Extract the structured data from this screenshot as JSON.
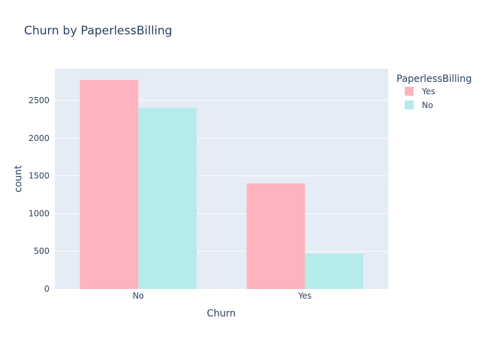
{
  "chart_data": {
    "type": "bar",
    "title": "Churn by PaperlessBilling",
    "xlabel": "Churn",
    "ylabel": "count",
    "categories": [
      "No",
      "Yes"
    ],
    "series": [
      {
        "name": "Yes",
        "values": [
          2771,
          1400
        ],
        "color": "#ffb3be"
      },
      {
        "name": "No",
        "values": [
          2403,
          469
        ],
        "color": "#b5ebeb"
      }
    ],
    "ylim": [
      0,
      2920
    ],
    "yticks": [
      0,
      500,
      1000,
      1500,
      2000,
      2500
    ],
    "grid": true,
    "legend": {
      "title": "PaperlessBilling",
      "placement": "top-right"
    },
    "background": "#e5ecf6"
  }
}
